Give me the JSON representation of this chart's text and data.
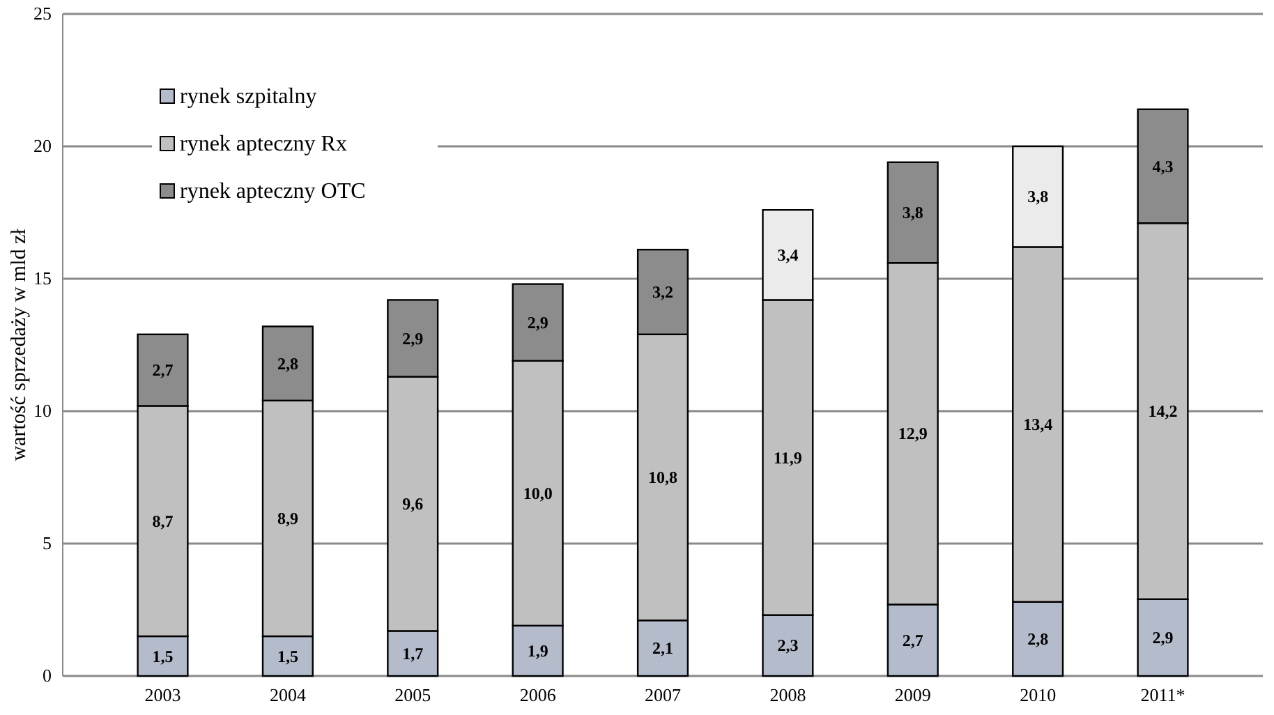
{
  "chart_data": {
    "type": "bar",
    "stacked": true,
    "ylabel": "wartość sprzedaży w mld zł",
    "categories": [
      "2003",
      "2004",
      "2005",
      "2006",
      "2007",
      "2008",
      "2009",
      "2010",
      "2011*"
    ],
    "series": [
      {
        "name": "rynek szpitalny",
        "color": "#b4bccc",
        "values": [
          1.5,
          1.5,
          1.7,
          1.9,
          2.1,
          2.3,
          2.7,
          2.8,
          2.9
        ],
        "value_labels": [
          "1,5",
          "1,5",
          "1,7",
          "1,9",
          "2,1",
          "2,3",
          "2,7",
          "2,8",
          "2,9"
        ]
      },
      {
        "name": "rynek apteczny Rx",
        "color": "#c0c0c0",
        "values": [
          8.7,
          8.9,
          9.6,
          10.0,
          10.8,
          11.9,
          12.9,
          13.4,
          14.2
        ],
        "value_labels": [
          "8,7",
          "8,9",
          "9,6",
          "10,0",
          "10,8",
          "11,9",
          "12,9",
          "13,4",
          "14,2"
        ]
      },
      {
        "name": "rynek apteczny OTC",
        "color": "#8c8c8c",
        "colors": [
          "#8c8c8c",
          "#8c8c8c",
          "#8c8c8c",
          "#8c8c8c",
          "#8c8c8c",
          "#ebebeb",
          "#8c8c8c",
          "#ebebeb",
          "#8c8c8c"
        ],
        "values": [
          2.7,
          2.8,
          2.9,
          2.9,
          3.2,
          3.4,
          3.8,
          3.8,
          4.3
        ],
        "value_labels": [
          "2,7",
          "2,8",
          "2,9",
          "2,9",
          "3,2",
          "3,4",
          "3,8",
          "3,8",
          "4,3"
        ]
      }
    ],
    "ylim": [
      0,
      25
    ],
    "yticks": [
      0,
      5,
      10,
      15,
      20,
      25
    ],
    "grid": "y",
    "legend": "top left"
  }
}
